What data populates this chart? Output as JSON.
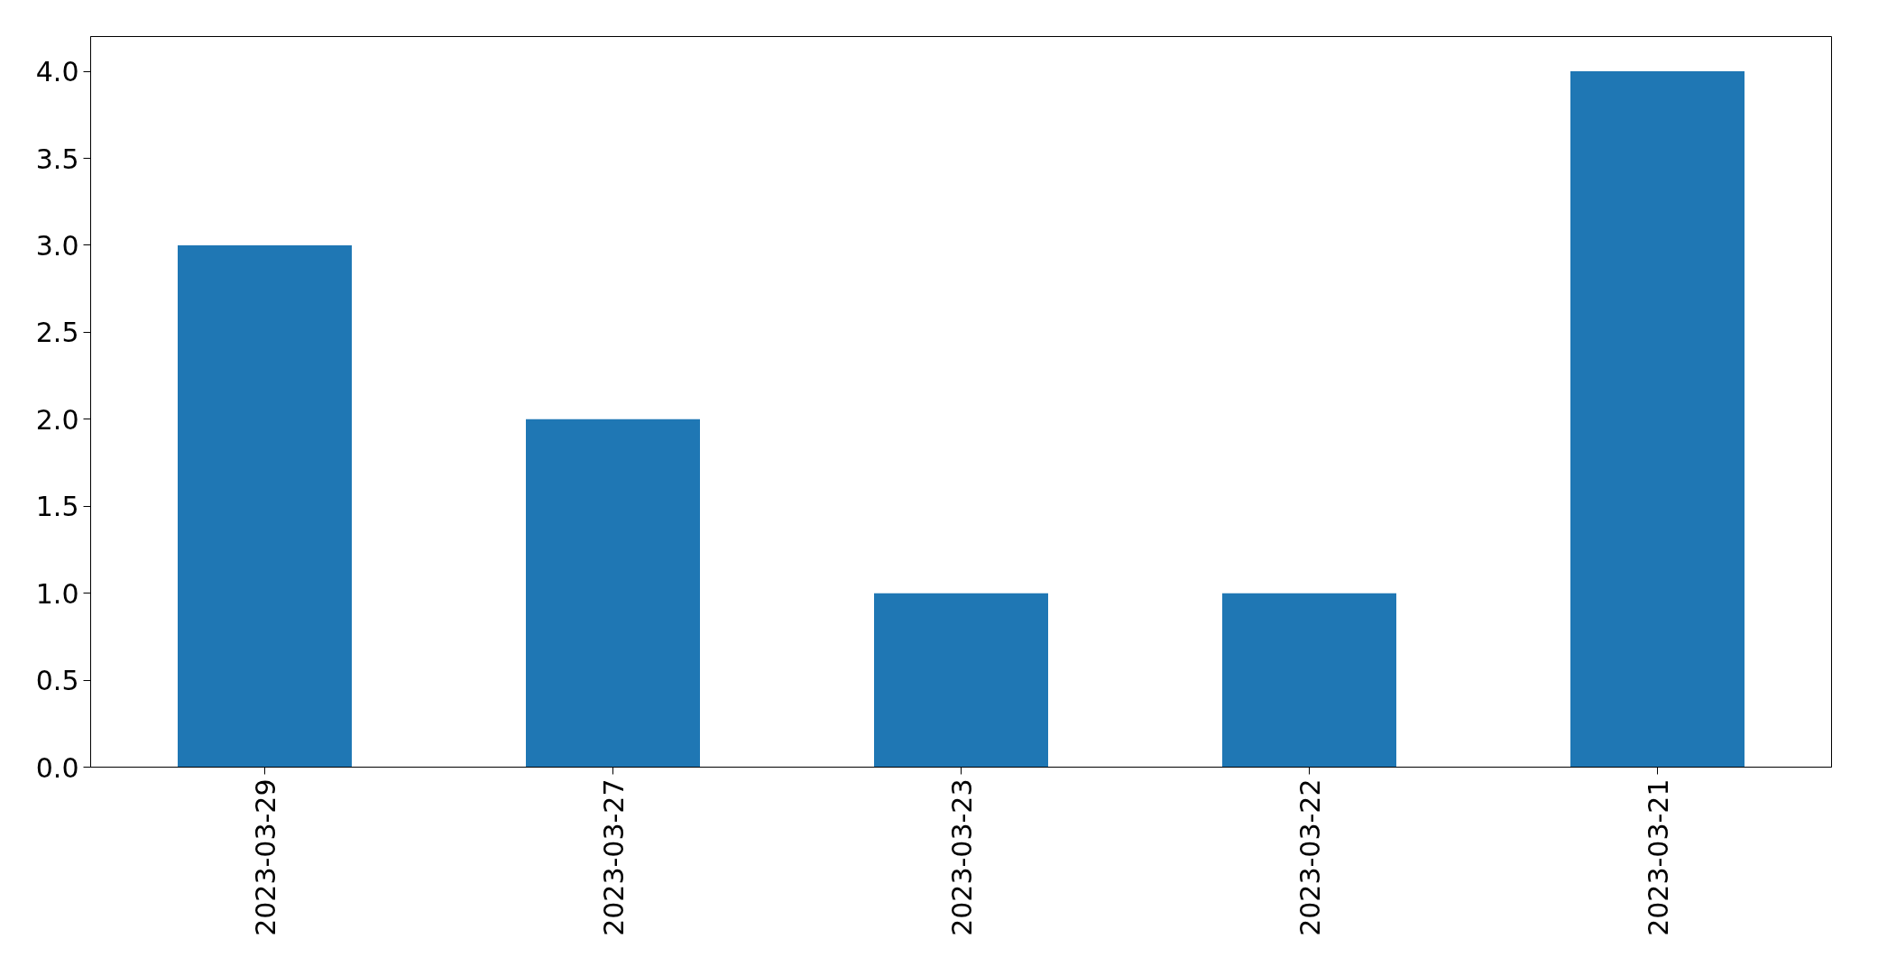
{
  "chart_data": {
    "type": "bar",
    "categories": [
      "2023-03-29",
      "2023-03-27",
      "2023-03-23",
      "2023-03-22",
      "2023-03-21"
    ],
    "values": [
      3,
      2,
      1,
      1,
      4
    ],
    "color": "#1f77b4",
    "ylim": [
      0,
      4.2
    ],
    "yticks": [
      {
        "value": 0,
        "label": "0.0"
      },
      {
        "value": 0.5,
        "label": "0.5"
      },
      {
        "value": 1,
        "label": "1.0"
      },
      {
        "value": 1.5,
        "label": "1.5"
      },
      {
        "value": 2,
        "label": "2.0"
      },
      {
        "value": 2.5,
        "label": "2.5"
      },
      {
        "value": 3,
        "label": "3.0"
      },
      {
        "value": 3.5,
        "label": "3.5"
      },
      {
        "value": 4,
        "label": "4.0"
      }
    ],
    "grid": false
  }
}
